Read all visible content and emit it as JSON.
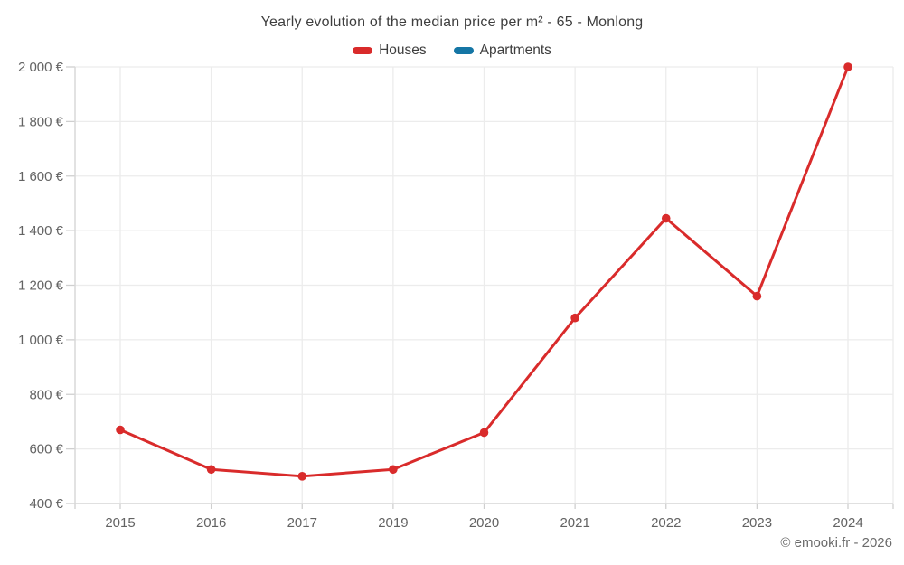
{
  "chart": {
    "title": "Yearly evolution of the median price per m² - 65 - Monlong",
    "footer": "© emooki.fr - 2026"
  },
  "chart_data": {
    "type": "line",
    "title": "Yearly evolution of the median price per m² - 65 - Monlong",
    "categories": [
      "2015",
      "2016",
      "2017",
      "2019",
      "2020",
      "2021",
      "2022",
      "2023",
      "2024"
    ],
    "series": [
      {
        "name": "Houses",
        "color": "#d92b2b",
        "values": [
          670,
          525,
          500,
          525,
          660,
          1080,
          1445,
          1160,
          2000
        ]
      },
      {
        "name": "Apartments",
        "color": "#1576a5",
        "values": []
      }
    ],
    "xlabel": "",
    "ylabel": "",
    "ylim": [
      400,
      2000
    ],
    "y_ticks": [
      400,
      600,
      800,
      1000,
      1200,
      1400,
      1600,
      1800,
      2000
    ],
    "y_tick_suffix": " €",
    "grid": true,
    "legend_position": "top",
    "legend": [
      "Houses",
      "Apartments"
    ],
    "attribution": "© emooki.fr - 2026"
  }
}
